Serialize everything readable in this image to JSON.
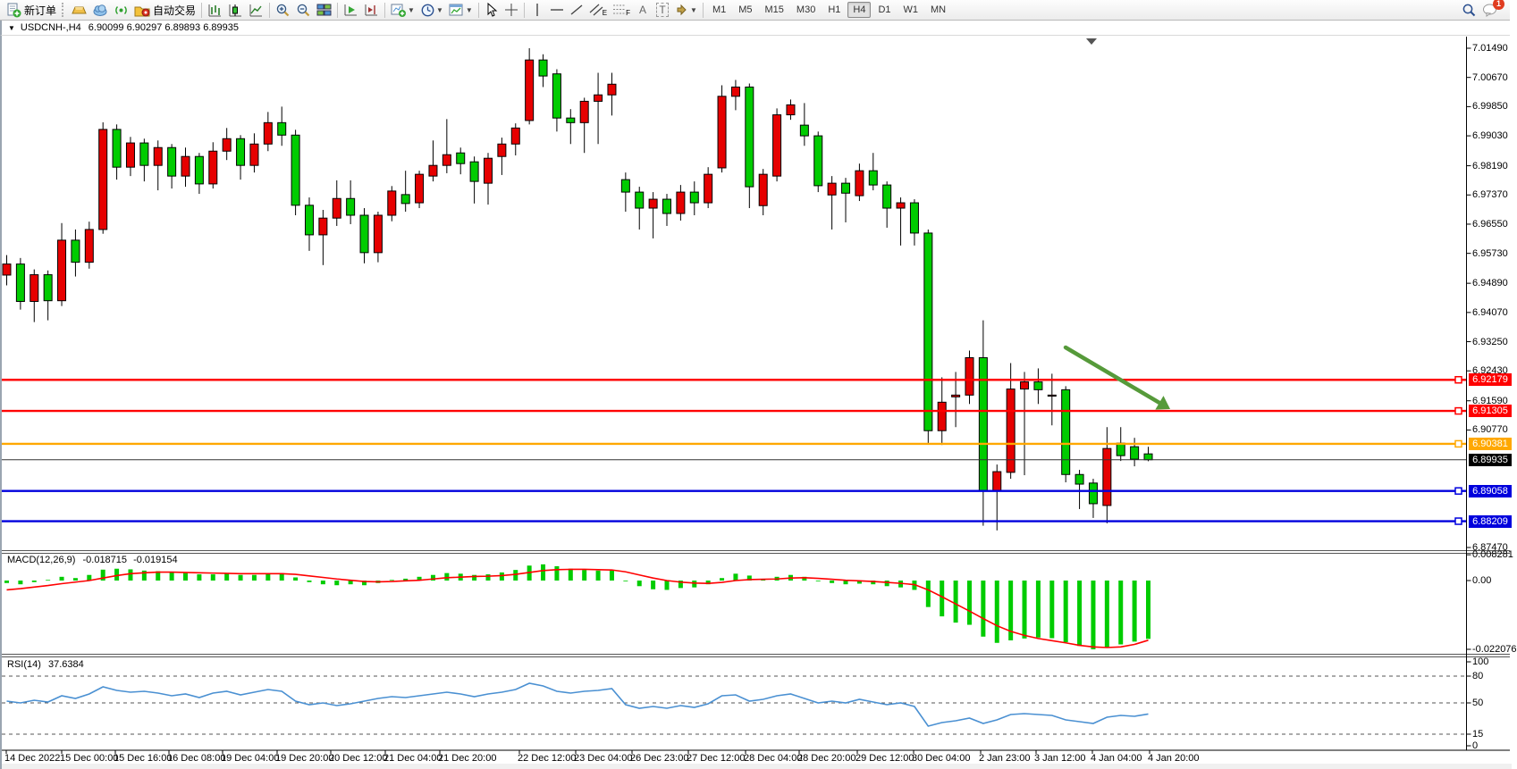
{
  "toolbar": {
    "new_order_label": "新订单",
    "auto_trading_label": "自动交易",
    "timeframes": [
      "M1",
      "M5",
      "M15",
      "M30",
      "H1",
      "H4",
      "D1",
      "W1",
      "MN"
    ],
    "active_timeframe": "H4",
    "notification_badge": "1",
    "text_tool_glyph": "A",
    "text_label_tool_glyph": "T",
    "channel_tool_sub": "E",
    "fibo_tool_sub": "F"
  },
  "chart_header": {
    "collapse_glyph": "▼",
    "symbol_title": "USDCNH-,H4",
    "quote_string": "6.90099 6.90297 6.89893 6.89935"
  },
  "chart_data": {
    "type": "candlestick",
    "symbol": "USDCNH-",
    "timeframe": "H4",
    "ohlc_current": {
      "open": 6.90099,
      "high": 6.90297,
      "low": 6.89893,
      "close": 6.89935
    },
    "ylim": [
      6.8747,
      7.0149
    ],
    "grid": false,
    "bull_color": "#e60000",
    "bear_color": "#00cc00",
    "price_axis_ticks": [
      "7.01490",
      "7.00670",
      "6.99850",
      "6.99030",
      "6.98190",
      "6.97370",
      "6.96550",
      "6.95730",
      "6.94890",
      "6.94070",
      "6.93250",
      "6.92430",
      "6.91590",
      "6.90770",
      "6.87470"
    ],
    "horizontal_lines": [
      {
        "price": 6.92179,
        "label": "6.92179",
        "color": "#ff0000"
      },
      {
        "price": 6.91305,
        "label": "6.91305",
        "color": "#ff0000"
      },
      {
        "price": 6.90381,
        "label": "6.90381",
        "color": "#ffa800"
      },
      {
        "price": 6.89058,
        "label": "6.89058",
        "color": "#0000dd"
      },
      {
        "price": 6.88209,
        "label": "6.88209",
        "color": "#0000dd"
      }
    ],
    "current_price_line": {
      "price": 6.89935,
      "label": "6.89935",
      "bg": "#000000"
    },
    "trend_arrow": {
      "x1": 1190,
      "y1": 389,
      "x2": 1307,
      "y2": 458,
      "color": "#569a3a"
    },
    "time_labels": [
      [
        "14 Dec 2022",
        3
      ],
      [
        "15 Dec 00:00",
        65
      ],
      [
        "15 Dec 16:00",
        125
      ],
      [
        "16 Dec 08:00",
        185
      ],
      [
        "19 Dec 04:00",
        245
      ],
      [
        "19 Dec 20:00",
        306
      ],
      [
        "20 Dec 12:00",
        366
      ],
      [
        "21 Dec 04:00",
        427
      ],
      [
        "21 Dec 20:00",
        488
      ],
      [
        "22 Dec 12:00",
        577
      ],
      [
        "23 Dec 04:00",
        640
      ],
      [
        "26 Dec 23:00",
        703
      ],
      [
        "27 Dec 12:00",
        766
      ],
      [
        "28 Dec 04:00",
        830
      ],
      [
        "28 Dec 20:00",
        890
      ],
      [
        "29 Dec 12:00",
        955
      ],
      [
        "30 Dec 04:00",
        1018
      ],
      [
        "2 Jan 23:00",
        1093
      ],
      [
        "3 Jan 12:00",
        1155
      ],
      [
        "4 Jan 04:00",
        1218
      ],
      [
        "4 Jan 20:00",
        1282
      ]
    ],
    "candles": [
      [
        6.9512,
        6.9568,
        6.9483,
        6.9543
      ],
      [
        6.9543,
        6.956,
        6.9415,
        6.9438
      ],
      [
        6.9438,
        6.9528,
        6.938,
        6.9513
      ],
      [
        6.9513,
        6.9525,
        6.9385,
        6.944
      ],
      [
        6.944,
        6.9658,
        6.9425,
        6.961
      ],
      [
        6.961,
        6.964,
        6.9508,
        6.9548
      ],
      [
        6.9548,
        6.9662,
        6.953,
        6.964
      ],
      [
        6.964,
        6.9941,
        6.9628,
        6.9921
      ],
      [
        6.9921,
        6.9935,
        6.978,
        6.9815
      ],
      [
        6.9815,
        6.99,
        6.979,
        6.9883
      ],
      [
        6.9883,
        6.9895,
        6.9775,
        6.982
      ],
      [
        6.982,
        6.989,
        6.975,
        6.987
      ],
      [
        6.987,
        6.988,
        6.9755,
        6.979
      ],
      [
        6.979,
        6.987,
        6.976,
        6.9845
      ],
      [
        6.9845,
        6.9855,
        6.974,
        6.9768
      ],
      [
        6.9768,
        6.9885,
        6.9755,
        6.986
      ],
      [
        6.986,
        6.9925,
        6.9835,
        6.9895
      ],
      [
        6.9895,
        6.9905,
        6.978,
        6.982
      ],
      [
        6.982,
        6.991,
        6.98,
        6.988
      ],
      [
        6.988,
        6.997,
        6.986,
        6.994
      ],
      [
        6.994,
        6.9985,
        6.9875,
        6.9905
      ],
      [
        6.9905,
        6.992,
        6.968,
        6.9708
      ],
      [
        6.9708,
        6.973,
        6.958,
        6.9625
      ],
      [
        6.9625,
        6.9695,
        6.954,
        6.9672
      ],
      [
        6.9672,
        6.9778,
        6.965,
        6.9727
      ],
      [
        6.9727,
        6.9778,
        6.9655,
        6.968
      ],
      [
        6.968,
        6.97,
        6.9545,
        6.9575
      ],
      [
        6.9575,
        6.969,
        6.9548,
        6.968
      ],
      [
        6.968,
        6.9762,
        6.9663,
        6.9748
      ],
      [
        6.9738,
        6.9805,
        6.969,
        6.9713
      ],
      [
        6.9715,
        6.9805,
        6.97,
        6.9795
      ],
      [
        6.979,
        6.989,
        6.9775,
        6.982
      ],
      [
        6.982,
        6.995,
        6.9798,
        6.985
      ],
      [
        6.9855,
        6.987,
        6.9795,
        6.9825
      ],
      [
        6.983,
        6.9845,
        6.9713,
        6.9775
      ],
      [
        6.977,
        6.9855,
        6.971,
        6.984
      ],
      [
        6.9845,
        6.9898,
        6.9793,
        6.988
      ],
      [
        6.988,
        6.9938,
        6.9848,
        6.9925
      ],
      [
        6.9946,
        7.0149,
        6.9935,
        7.0116
      ],
      [
        7.0116,
        7.0132,
        7.004,
        7.0071
      ],
      [
        7.0077,
        7.009,
        6.9915,
        6.9953
      ],
      [
        6.9953,
        6.9978,
        6.988,
        6.994
      ],
      [
        6.994,
        7.001,
        6.9855,
        7.0
      ],
      [
        7.0,
        7.008,
        6.988,
        7.0018
      ],
      [
        7.0018,
        7.008,
        6.996,
        7.0048
      ],
      [
        6.978,
        6.98,
        6.969,
        6.9745
      ],
      [
        6.9745,
        6.976,
        6.964,
        6.97
      ],
      [
        6.97,
        6.9745,
        6.9615,
        6.9725
      ],
      [
        6.9725,
        6.974,
        6.965,
        6.9685
      ],
      [
        6.9685,
        6.9765,
        6.9665,
        6.9745
      ],
      [
        6.9745,
        6.9775,
        6.968,
        6.9715
      ],
      [
        6.9715,
        6.9815,
        6.97,
        6.9795
      ],
      [
        6.9813,
        7.0045,
        6.98,
        7.0014
      ],
      [
        7.0014,
        7.006,
        6.9975,
        7.004
      ],
      [
        7.004,
        7.005,
        6.97,
        6.976
      ],
      [
        6.9707,
        6.981,
        6.968,
        6.9795
      ],
      [
        6.979,
        6.998,
        6.9775,
        6.9962
      ],
      [
        6.9962,
        7.0005,
        6.9948,
        6.999
      ],
      [
        6.9933,
        6.9995,
        6.9875,
        6.9903
      ],
      [
        6.9903,
        6.9915,
        6.9745,
        6.9763
      ],
      [
        6.9737,
        6.979,
        6.964,
        6.977
      ],
      [
        6.977,
        6.9785,
        6.966,
        6.9742
      ],
      [
        6.9735,
        6.9825,
        6.972,
        6.9805
      ],
      [
        6.9805,
        6.9855,
        6.975,
        6.9765
      ],
      [
        6.9765,
        6.9775,
        6.9645,
        6.97
      ],
      [
        6.97,
        6.973,
        6.9595,
        6.9715
      ],
      [
        6.9715,
        6.9725,
        6.9595,
        6.963
      ],
      [
        6.963,
        6.964,
        6.904,
        6.9075
      ],
      [
        6.9075,
        6.9225,
        6.9035,
        6.9155
      ],
      [
        6.917,
        6.924,
        6.9085,
        6.9175
      ],
      [
        6.9175,
        6.93,
        6.915,
        6.928
      ],
      [
        6.928,
        6.9385,
        6.8808,
        6.8905
      ],
      [
        6.8905,
        6.898,
        6.8795,
        6.896
      ],
      [
        6.8958,
        6.9265,
        6.894,
        6.9192
      ],
      [
        6.9192,
        6.924,
        6.895,
        6.9212
      ],
      [
        6.9212,
        6.925,
        6.915,
        6.919
      ],
      [
        6.9172,
        6.9235,
        6.909,
        6.9175
      ],
      [
        6.919,
        6.92,
        6.893,
        6.8952
      ],
      [
        6.8952,
        6.8965,
        6.8855,
        6.8925
      ],
      [
        6.8928,
        6.894,
        6.883,
        6.887
      ],
      [
        6.8865,
        6.9085,
        6.8815,
        6.9025
      ],
      [
        6.904,
        6.9085,
        6.899,
        6.9005
      ],
      [
        6.903,
        6.9055,
        6.8975,
        6.8995
      ],
      [
        6.90099,
        6.90297,
        6.89893,
        6.89935
      ]
    ],
    "macd": {
      "label": "MACD(12,26,9)",
      "main_value": "-0.018715",
      "signal_value": "-0.019154",
      "axis_ticks": [
        "0.008281",
        "0.00",
        "-0.022076"
      ],
      "hist_color": "#00cc00",
      "signal_color": "#ff0000",
      "histogram": [
        -0.0008,
        -0.0012,
        -0.0005,
        0.0002,
        0.0012,
        0.0008,
        0.0018,
        0.0035,
        0.0038,
        0.0036,
        0.0032,
        0.003,
        0.0026,
        0.0024,
        0.002,
        0.002,
        0.0022,
        0.0018,
        0.0018,
        0.0022,
        0.0024,
        0.001,
        -0.0005,
        -0.0012,
        -0.0015,
        -0.0012,
        -0.0015,
        -0.0008,
        0.0002,
        0.0006,
        0.0012,
        0.0018,
        0.0024,
        0.0022,
        0.0018,
        0.002,
        0.0026,
        0.0034,
        0.0048,
        0.0052,
        0.0046,
        0.0038,
        0.0034,
        0.0032,
        0.0032,
        0.0,
        -0.0018,
        -0.0028,
        -0.003,
        -0.0024,
        -0.0022,
        -0.0012,
        0.0008,
        0.0022,
        0.0016,
        0.0005,
        0.0012,
        0.0018,
        0.0012,
        0.0,
        -0.0008,
        -0.0012,
        -0.001,
        -0.0012,
        -0.0018,
        -0.0022,
        -0.003,
        -0.0085,
        -0.0115,
        -0.0135,
        -0.0142,
        -0.018,
        -0.02,
        -0.0192,
        -0.0186,
        -0.0183,
        -0.0185,
        -0.0198,
        -0.021,
        -0.022076,
        -0.0215,
        -0.0205,
        -0.0196,
        -0.018715
      ],
      "signal": [
        -0.003,
        -0.0026,
        -0.0021,
        -0.0016,
        -0.001,
        -0.0005,
        0.0,
        0.0008,
        0.0016,
        0.0022,
        0.0025,
        0.0027,
        0.0027,
        0.0026,
        0.0025,
        0.0024,
        0.0023,
        0.0022,
        0.0022,
        0.0022,
        0.0022,
        0.002,
        0.0015,
        0.001,
        0.0005,
        0.0001,
        -0.0003,
        -0.0004,
        -0.0003,
        -0.0001,
        0.0001,
        0.0005,
        0.0009,
        0.0011,
        0.0013,
        0.0014,
        0.0016,
        0.002,
        0.0026,
        0.0032,
        0.0035,
        0.0036,
        0.0036,
        0.0035,
        0.0034,
        0.0028,
        0.0018,
        0.0008,
        0.0,
        -0.0005,
        -0.0008,
        -0.0009,
        -0.0006,
        0.0,
        0.0003,
        0.0004,
        0.0005,
        0.0008,
        0.0009,
        0.0007,
        0.0004,
        0.0001,
        -0.0001,
        -0.0003,
        -0.0006,
        -0.0009,
        -0.0013,
        -0.003,
        -0.0052,
        -0.0075,
        -0.0098,
        -0.0122,
        -0.0145,
        -0.0163,
        -0.0176,
        -0.0186,
        -0.0193,
        -0.02,
        -0.0208,
        -0.0213,
        -0.0215,
        -0.0213,
        -0.0205,
        -0.019154
      ]
    },
    "rsi": {
      "label": "RSI(14)",
      "value": "37.6384",
      "line_color": "#4a90d2",
      "levels": [
        100,
        80,
        50,
        15,
        0
      ],
      "dashed_levels": [
        80,
        50,
        15
      ],
      "values": [
        52,
        50,
        53,
        51,
        58,
        55,
        60,
        68,
        64,
        62,
        63,
        61,
        58,
        60,
        56,
        61,
        63,
        59,
        62,
        65,
        63,
        52,
        48,
        50,
        47,
        49,
        52,
        55,
        57,
        56,
        58,
        60,
        62,
        60,
        57,
        60,
        62,
        65,
        72,
        69,
        63,
        61,
        63,
        64,
        66,
        48,
        44,
        46,
        44,
        47,
        45,
        49,
        58,
        59,
        52,
        54,
        58,
        60,
        55,
        50,
        52,
        50,
        54,
        51,
        48,
        50,
        46,
        24,
        28,
        30,
        33,
        27,
        31,
        37,
        38,
        37,
        36,
        31,
        29,
        27,
        34,
        36,
        35,
        37.6
      ]
    }
  }
}
